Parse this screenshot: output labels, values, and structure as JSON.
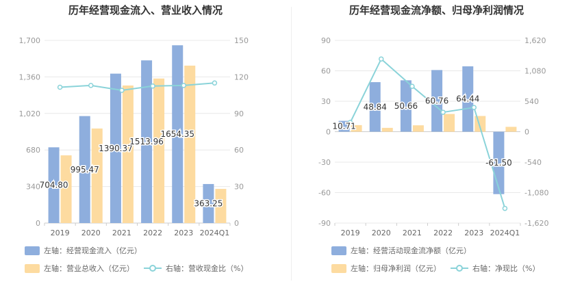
{
  "colors": {
    "bar1": "#8eaedd",
    "bar2": "#fddba0",
    "line": "#8ad3d9",
    "grid": "#e8e8e8",
    "axis": "#999999"
  },
  "chart_data": [
    {
      "id": "left",
      "type": "bar",
      "title": "历年经营现金流入、营业收入情况",
      "categories": [
        "2019",
        "2020",
        "2021",
        "2022",
        "2023",
        "2024Q1"
      ],
      "left_axis": {
        "ylim": [
          0,
          1700
        ],
        "ticks": [
          "0",
          "340",
          "680",
          "1,020",
          "1,360",
          "1,700"
        ],
        "tick_values": [
          0,
          340,
          680,
          1020,
          1360,
          1700
        ]
      },
      "right_axis": {
        "ylim": [
          0,
          150
        ],
        "ticks": [
          "0",
          "30",
          "60",
          "90",
          "120",
          "150"
        ],
        "tick_values": [
          0,
          30,
          60,
          90,
          120,
          150
        ]
      },
      "series": [
        {
          "name": "左轴：经营现金流入（亿元）",
          "axis": "left",
          "kind": "bar",
          "values": [
            704.8,
            995.47,
            1390.37,
            1513.96,
            1654.35,
            363.25
          ],
          "labels": [
            "704.80",
            "995.47",
            "1390.37",
            "1513.96",
            "1654.35",
            "363.25"
          ]
        },
        {
          "name": "左轴：营业总收入（亿元）",
          "axis": "left",
          "kind": "bar",
          "values": [
            630,
            880,
            1280,
            1345,
            1465,
            318
          ]
        },
        {
          "name": "右轴：营收现金比（%）",
          "axis": "right",
          "kind": "line",
          "values": [
            111.5,
            113.0,
            109.0,
            112.5,
            113.0,
            115.0
          ]
        }
      ],
      "legend": [
        "左轴：经营现金流入（亿元）",
        "左轴：营业总收入（亿元）",
        "右轴：营收现金比（%）"
      ]
    },
    {
      "id": "right",
      "type": "bar",
      "title": "历年经营现金流净额、归母净利润情况",
      "categories": [
        "2019",
        "2020",
        "2021",
        "2022",
        "2023",
        "2024Q1"
      ],
      "left_axis": {
        "ylim": [
          -90,
          90
        ],
        "ticks": [
          "-90",
          "-60",
          "-30",
          "0",
          "30",
          "60",
          "90"
        ],
        "tick_values": [
          -90,
          -60,
          -30,
          0,
          30,
          60,
          90
        ]
      },
      "right_axis": {
        "ylim": [
          -1620,
          1620
        ],
        "ticks": [
          "-1,620",
          "-1,080",
          "-540",
          "0",
          "540",
          "1,080",
          "1,620"
        ],
        "tick_values": [
          -1620,
          -1080,
          -540,
          0,
          540,
          1080,
          1620
        ]
      },
      "series": [
        {
          "name": "左轴：经营活动现金流净额（亿元）",
          "axis": "left",
          "kind": "bar",
          "values": [
            10.71,
            48.84,
            50.66,
            60.76,
            64.44,
            -61.5
          ],
          "labels": [
            "10.71",
            "48.84",
            "50.66",
            "60.76",
            "64.44",
            "-61.50"
          ]
        },
        {
          "name": "左轴：归母净利润（亿元）",
          "axis": "left",
          "kind": "bar",
          "values": [
            6.5,
            3.8,
            6.3,
            17.5,
            15.5,
            4.8
          ]
        },
        {
          "name": "右轴：净现比（%）",
          "axis": "right",
          "kind": "line",
          "values": [
            165,
            1290,
            805,
            345,
            430,
            -1360
          ]
        }
      ],
      "legend": [
        "左轴：经营活动现金流净额（亿元）",
        "左轴：归母净利润（亿元）",
        "右轴：净现比（%）"
      ]
    }
  ]
}
